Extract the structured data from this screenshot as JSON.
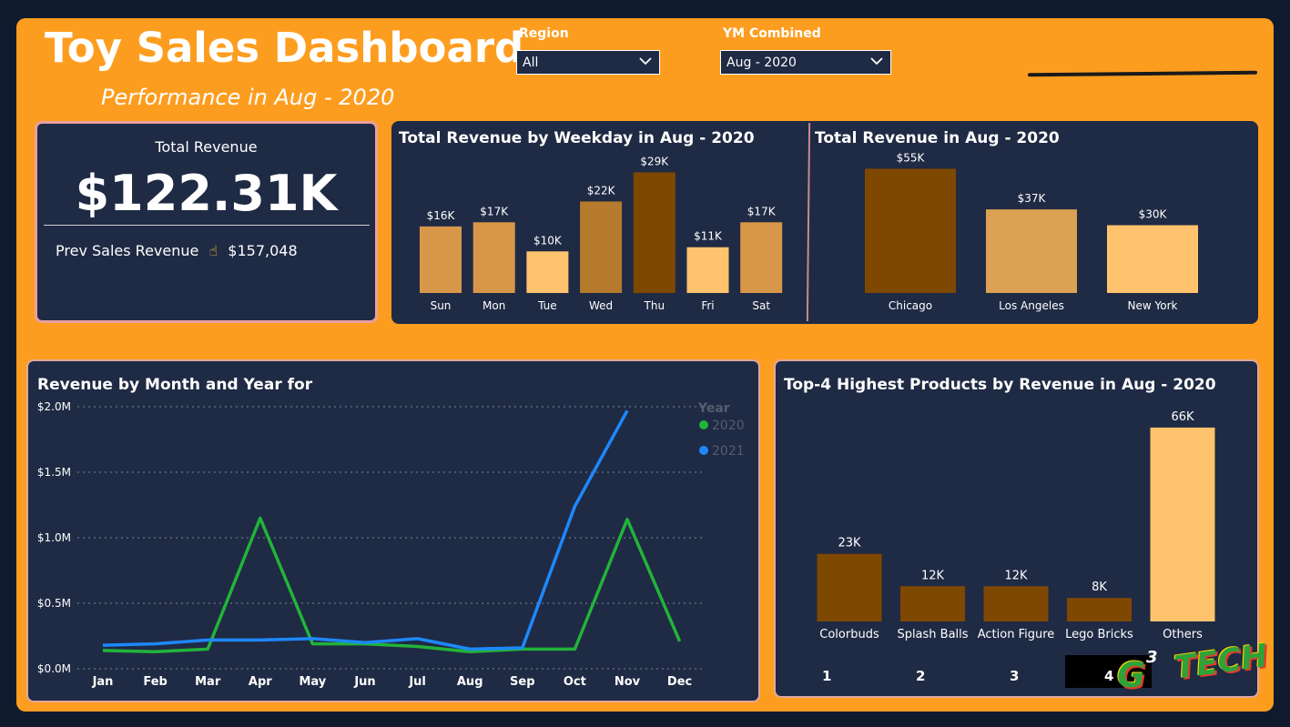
{
  "header": {
    "title": "Toy Sales Dashboard",
    "subtitle": "Performance in Aug - 2020"
  },
  "slicers": {
    "region_label": "Region",
    "region_value": "All",
    "ym_label": "YM Combined",
    "ym_value": "Aug - 2020"
  },
  "kpi": {
    "label": "Total Revenue",
    "value": "$122.31K",
    "prev_label": "Prev Sales Revenue",
    "prev_icon": "☝",
    "prev_value": "$157,048"
  },
  "colors": {
    "background": "#0f1b2d",
    "canvas": "#fd9d20",
    "card": "#1f2a44",
    "green": "#22b33a",
    "blue": "#1e88ff"
  },
  "chart_data": [
    {
      "id": "weekday",
      "type": "bar",
      "title": "Total Revenue by Weekday in Aug - 2020",
      "categories": [
        "Sun",
        "Mon",
        "Tue",
        "Wed",
        "Thu",
        "Fri",
        "Sat"
      ],
      "values": [
        16,
        17,
        10,
        22,
        29,
        11,
        17
      ],
      "labels": [
        "$16K",
        "$17K",
        "$10K",
        "$22K",
        "$29K",
        "$11K",
        "$17K"
      ],
      "colors": [
        "#d89748",
        "#d89748",
        "#ffc36e",
        "#b57a2c",
        "#7f4800",
        "#ffc36e",
        "#d89748"
      ],
      "unit": "K"
    },
    {
      "id": "city",
      "type": "bar",
      "title": "Total Revenue in Aug - 2020",
      "categories": [
        "Chicago",
        "Los Angeles",
        "New York"
      ],
      "values": [
        55,
        37,
        30
      ],
      "labels": [
        "$55K",
        "$37K",
        "$30K"
      ],
      "colors": [
        "#7f4800",
        "#dca253",
        "#ffc36e"
      ],
      "unit": "K"
    },
    {
      "id": "monthly",
      "type": "line",
      "title": "Revenue by Month and Year for",
      "categories": [
        "Jan",
        "Feb",
        "Mar",
        "Apr",
        "May",
        "Jun",
        "Jul",
        "Aug",
        "Sep",
        "Oct",
        "Nov",
        "Dec"
      ],
      "yticks": [
        "$0.0M",
        "$0.5M",
        "$1.0M",
        "$1.5M",
        "$2.0M"
      ],
      "ylim": [
        0,
        2.0
      ],
      "legend_title": "Year",
      "legend_position": "top-right",
      "grid": true,
      "series": [
        {
          "name": "2020",
          "color": "#22b33a",
          "values": [
            0.14,
            0.13,
            0.15,
            1.15,
            0.19,
            0.19,
            0.17,
            0.13,
            0.15,
            0.15,
            1.14,
            0.21
          ]
        },
        {
          "name": "2021",
          "color": "#1e88ff",
          "values": [
            0.18,
            0.19,
            0.22,
            0.22,
            0.23,
            0.2,
            0.23,
            0.15,
            0.16,
            1.24,
            1.97,
            null
          ]
        }
      ]
    },
    {
      "id": "products",
      "type": "bar",
      "title": "Top-4 Highest Products by Revenue in Aug - 2020",
      "categories": [
        "Colorbuds",
        "Splash Balls",
        "Action Figure",
        "Lego Bricks",
        "Others"
      ],
      "values": [
        23,
        12,
        12,
        8,
        66
      ],
      "labels": [
        "23K",
        "12K",
        "12K",
        "8K",
        "66K"
      ],
      "colors": [
        "#7f4800",
        "#7f4800",
        "#7f4800",
        "#7f4800",
        "#ffc36e"
      ],
      "unit": "K"
    }
  ],
  "footer": {
    "ranks": [
      "1",
      "2",
      "3",
      "4"
    ]
  },
  "logo": {
    "text_g": "G",
    "text_sup": "3",
    "text_tech": "TECH"
  }
}
